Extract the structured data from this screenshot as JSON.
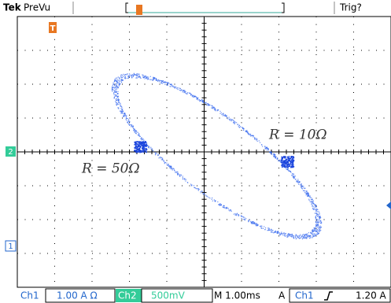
{
  "header": {
    "brand": "Tek",
    "mode": "PreVu",
    "trigger_status": "Trig?"
  },
  "markers": {
    "trigger": "T",
    "channel2": "2",
    "channel1": "1"
  },
  "annotations": [
    "R = 50Ω",
    "R = 10Ω"
  ],
  "footer": {
    "ch1": "Ch1",
    "ch1_scale": "1.00 A Ω",
    "ch2": "Ch2",
    "ch2_scale": "500mV",
    "timebase": "M 1.00ms",
    "trigger_mode": "A",
    "trigger_source": "Ch1",
    "trigger_level": "1.20 A"
  }
}
